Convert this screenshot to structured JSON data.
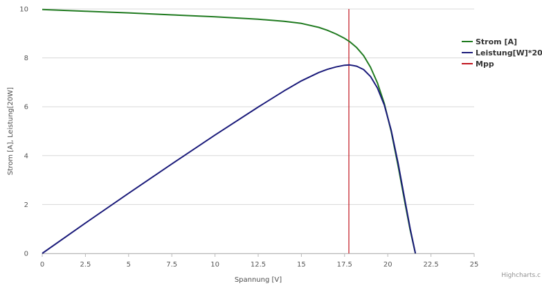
{
  "chart_data": {
    "type": "line",
    "title": "",
    "xlabel": "Spannung [V]",
    "ylabel": "Strom [A], Leistung[20W]",
    "xlim": [
      0,
      25
    ],
    "ylim": [
      0,
      10
    ],
    "xticks": [
      "0",
      "2.5",
      "5",
      "7.5",
      "10",
      "12.5",
      "15",
      "17.5",
      "20",
      "22.5",
      "25"
    ],
    "yticks": [
      "0",
      "2",
      "4",
      "6",
      "8",
      "10"
    ],
    "grid": true,
    "legend_position": "right",
    "credits": "Highcharts.c",
    "series": [
      {
        "name": "Strom [A]",
        "color": "#1f7a1f",
        "x": [
          0,
          2.5,
          5,
          7.5,
          10,
          12.5,
          14,
          15,
          16,
          16.5,
          17,
          17.5,
          17.8,
          18.2,
          18.6,
          19,
          19.4,
          19.8,
          20.2,
          20.6,
          21,
          21.3,
          21.6
        ],
        "y": [
          9.98,
          9.91,
          9.84,
          9.76,
          9.68,
          9.58,
          9.5,
          9.41,
          9.25,
          9.13,
          8.98,
          8.8,
          8.66,
          8.42,
          8.09,
          7.62,
          6.98,
          6.13,
          4.98,
          3.57,
          2.04,
          0.95,
          0
        ]
      },
      {
        "name": "Leistung[W]*20",
        "color": "#1a1a7a",
        "x": [
          0,
          2.5,
          5,
          7.5,
          10,
          12.5,
          14,
          15,
          16,
          16.5,
          17,
          17.5,
          17.8,
          18.2,
          18.6,
          19,
          19.4,
          19.8,
          20.2,
          20.6,
          21,
          21.3,
          21.6
        ],
        "y": [
          0,
          1.24,
          2.46,
          3.66,
          4.84,
          5.99,
          6.65,
          7.06,
          7.4,
          7.53,
          7.63,
          7.7,
          7.71,
          7.66,
          7.52,
          7.24,
          6.77,
          6.07,
          5.03,
          3.68,
          2.14,
          1.01,
          0
        ]
      },
      {
        "name": "Mpp",
        "color": "#c0121c",
        "x": [
          17.75,
          17.75
        ],
        "y": [
          0,
          10
        ]
      }
    ]
  }
}
